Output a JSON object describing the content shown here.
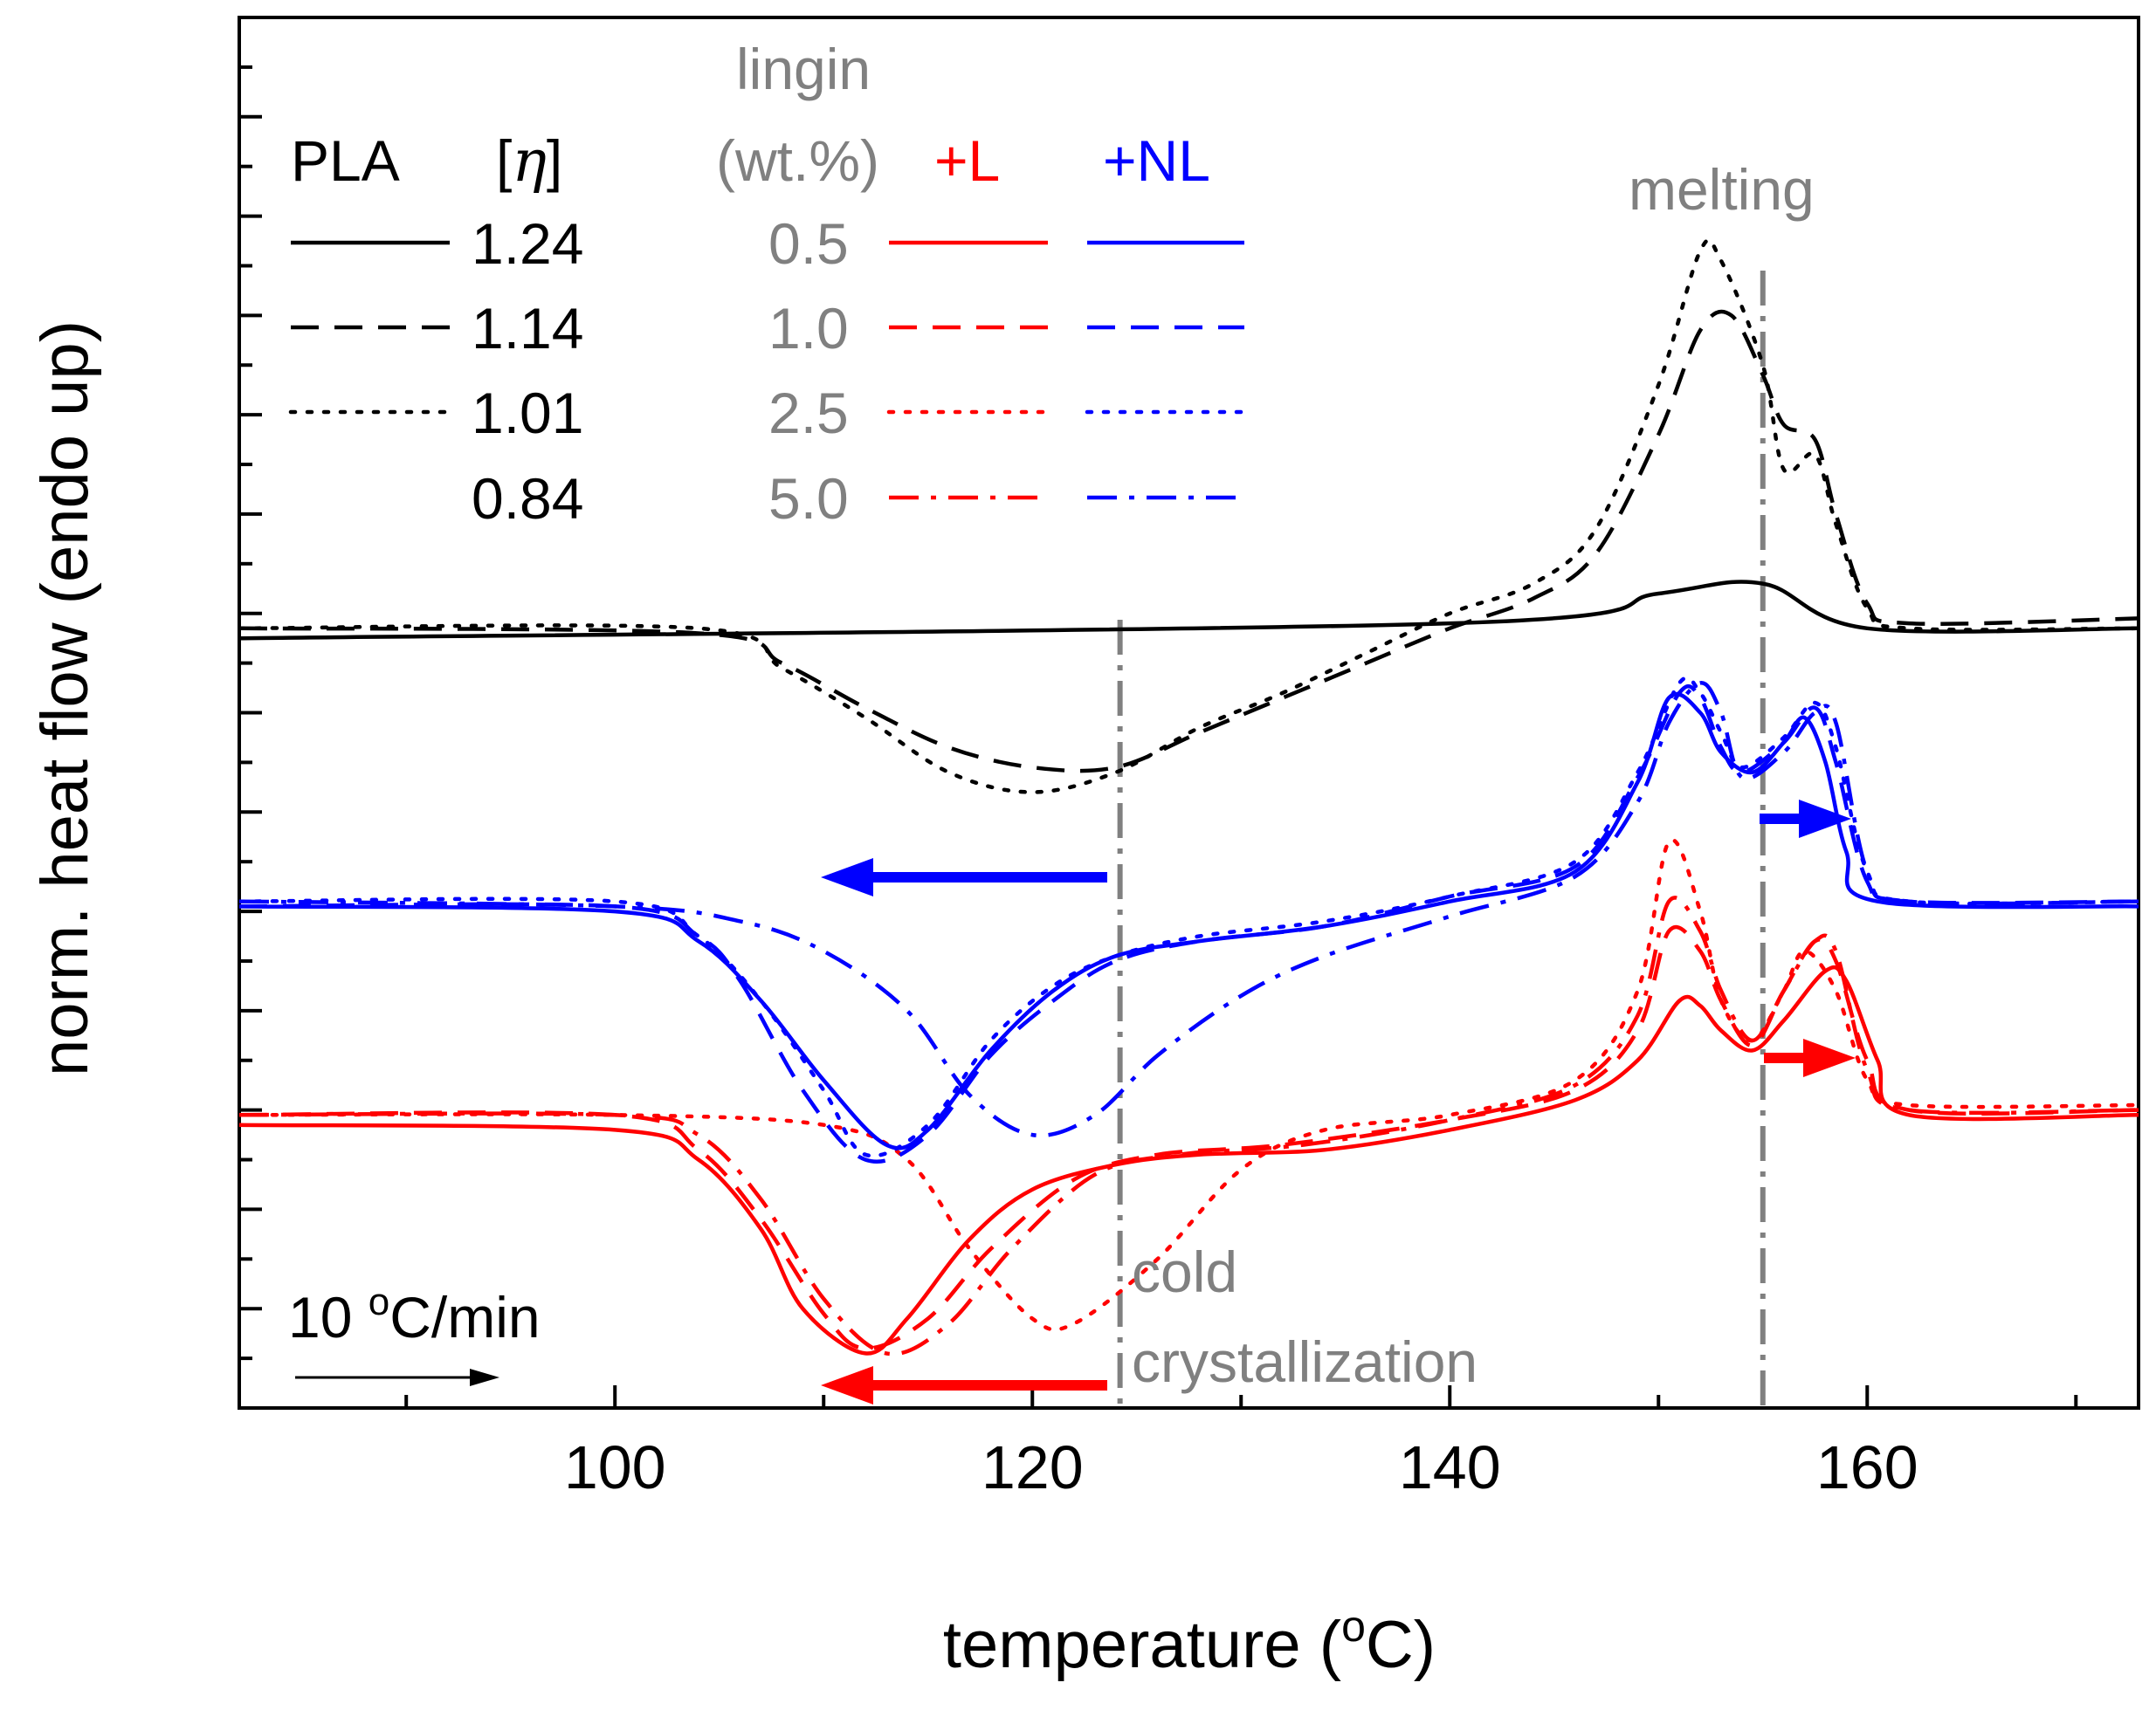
{
  "chart_data": {
    "type": "line",
    "title": "",
    "xlabel": "temperature (°C)",
    "xlabel_parts": [
      "temperature (",
      "o",
      "C)"
    ],
    "ylabel": "norm. heat flow (endo up)",
    "xlim": [
      82,
      173
    ],
    "ylim": [
      0,
      14
    ],
    "y_ticks_shown": false,
    "x_ticks": [
      100,
      120,
      140,
      160
    ],
    "x_tick_labels": [
      "100",
      "120",
      "140",
      "160"
    ],
    "x_minor_ticks": [
      90,
      110,
      130,
      150,
      170
    ],
    "colors": {
      "black": "#000000",
      "red": "#ff0000",
      "blue": "#0000ff",
      "gray": "#808080"
    },
    "legend": {
      "pla_header": "PLA",
      "eta_header": "[η]",
      "eta_bracket_open": "[",
      "eta_symbol": "η",
      "eta_bracket_close": "]",
      "lignin_header_1": "lingin",
      "lignin_header_2": "(wt.%)",
      "plus_l_header": "+L",
      "plus_nl_header": "+NL",
      "pla_rows": [
        {
          "style": "solid",
          "value": "1.24"
        },
        {
          "style": "dashed",
          "value": "1.14"
        },
        {
          "style": "dotted",
          "value": "1.01"
        },
        {
          "style": "none",
          "value": "0.84"
        }
      ],
      "lignin_rows": [
        {
          "style": "solid",
          "value": "0.5"
        },
        {
          "style": "dashed",
          "value": "1.0"
        },
        {
          "style": "dotted",
          "value": "2.5"
        },
        {
          "style": "dashdot",
          "value": "5.0"
        }
      ]
    },
    "annotations": {
      "melting_label": "melting",
      "melting_temperature": 155,
      "cold_label_1": "cold",
      "cold_label_2": "crystallization",
      "cold_crystallization_temperature": 124.2,
      "rate_label": "10 °C/min",
      "rate_label_parts": [
        "10 ",
        "o",
        "C/min"
      ]
    },
    "series": [
      {
        "name": "PLA [η]=1.24",
        "group": "PLA",
        "color": "#000000",
        "style": "solid",
        "points": [
          [
            82,
            7.75
          ],
          [
            140,
            7.9
          ],
          [
            150,
            8.2
          ],
          [
            155,
            8.3
          ],
          [
            160,
            7.85
          ],
          [
            173,
            7.85
          ]
        ]
      },
      {
        "name": "PLA [η]=1.14",
        "group": "PLA",
        "color": "#000000",
        "style": "dashed",
        "points": [
          [
            82,
            7.85
          ],
          [
            104,
            7.8
          ],
          [
            108,
            7.5
          ],
          [
            112,
            7.05
          ],
          [
            116,
            6.65
          ],
          [
            120,
            6.45
          ],
          [
            124,
            6.45
          ],
          [
            128,
            6.8
          ],
          [
            132,
            7.15
          ],
          [
            136,
            7.5
          ],
          [
            140,
            7.85
          ],
          [
            144,
            8.15
          ],
          [
            147,
            8.6
          ],
          [
            150,
            9.8
          ],
          [
            152,
            10.85
          ],
          [
            153.5,
            11.0
          ],
          [
            155,
            10.4
          ],
          [
            156,
            9.9
          ],
          [
            157.5,
            9.75
          ],
          [
            158.5,
            9.0
          ],
          [
            160,
            8.1
          ],
          [
            162,
            7.9
          ],
          [
            173,
            7.95
          ]
        ]
      },
      {
        "name": "PLA [η]=1.01",
        "group": "PLA",
        "color": "#000000",
        "style": "dotted",
        "points": [
          [
            82,
            7.85
          ],
          [
            104,
            7.85
          ],
          [
            108,
            7.45
          ],
          [
            112,
            6.95
          ],
          [
            116,
            6.4
          ],
          [
            120,
            6.2
          ],
          [
            124,
            6.4
          ],
          [
            128,
            6.85
          ],
          [
            132,
            7.2
          ],
          [
            136,
            7.6
          ],
          [
            140,
            8.0
          ],
          [
            144,
            8.3
          ],
          [
            147,
            8.85
          ],
          [
            150,
            10.3
          ],
          [
            152,
            11.65
          ],
          [
            153,
            11.55
          ],
          [
            155,
            10.5
          ],
          [
            156,
            9.45
          ],
          [
            157.5,
            9.6
          ],
          [
            158.5,
            8.9
          ],
          [
            160,
            8.05
          ],
          [
            162,
            7.85
          ],
          [
            173,
            7.85
          ]
        ]
      },
      {
        "name": "PLA/L 0.5 wt.%",
        "group": "+L",
        "color": "#ff0000",
        "style": "solid",
        "points": [
          [
            82,
            2.85
          ],
          [
            100,
            2.8
          ],
          [
            104,
            2.5
          ],
          [
            107,
            1.8
          ],
          [
            109,
            1.0
          ],
          [
            112,
            0.55
          ],
          [
            114,
            0.9
          ],
          [
            117,
            1.7
          ],
          [
            120,
            2.2
          ],
          [
            124,
            2.45
          ],
          [
            128,
            2.55
          ],
          [
            134,
            2.6
          ],
          [
            140,
            2.8
          ],
          [
            146,
            3.1
          ],
          [
            149,
            3.5
          ],
          [
            151,
            4.1
          ],
          [
            152,
            4.05
          ],
          [
            153,
            3.8
          ],
          [
            154.5,
            3.6
          ],
          [
            156,
            3.9
          ],
          [
            158,
            4.4
          ],
          [
            159,
            4.3
          ],
          [
            160.5,
            3.5
          ],
          [
            162,
            2.95
          ],
          [
            173,
            2.95
          ]
        ]
      },
      {
        "name": "PLA/L 1.0 wt.%",
        "group": "+L",
        "color": "#ff0000",
        "style": "dashed",
        "points": [
          [
            82,
            2.95
          ],
          [
            100,
            2.95
          ],
          [
            104,
            2.6
          ],
          [
            107,
            1.9
          ],
          [
            110,
            0.95
          ],
          [
            112,
            0.6
          ],
          [
            115,
            0.9
          ],
          [
            118,
            1.6
          ],
          [
            122,
            2.3
          ],
          [
            126,
            2.55
          ],
          [
            132,
            2.65
          ],
          [
            140,
            2.9
          ],
          [
            146,
            3.2
          ],
          [
            149,
            3.8
          ],
          [
            150.5,
            4.8
          ],
          [
            152,
            4.6
          ],
          [
            153,
            4.1
          ],
          [
            154.5,
            3.65
          ],
          [
            156,
            4.2
          ],
          [
            157.5,
            4.7
          ],
          [
            158.5,
            4.5
          ],
          [
            160,
            3.5
          ],
          [
            162,
            3.0
          ],
          [
            173,
            3.0
          ]
        ]
      },
      {
        "name": "PLA/L 2.5 wt.%",
        "group": "+L",
        "color": "#ff0000",
        "style": "dotted",
        "points": [
          [
            82,
            2.95
          ],
          [
            100,
            2.95
          ],
          [
            110,
            2.85
          ],
          [
            114,
            2.5
          ],
          [
            117,
            1.6
          ],
          [
            120,
            0.9
          ],
          [
            122,
            0.85
          ],
          [
            126,
            1.5
          ],
          [
            130,
            2.4
          ],
          [
            134,
            2.8
          ],
          [
            140,
            2.95
          ],
          [
            146,
            3.3
          ],
          [
            149,
            4.2
          ],
          [
            150.5,
            5.7
          ],
          [
            152,
            5.0
          ],
          [
            153,
            4.1
          ],
          [
            154.5,
            3.7
          ],
          [
            156,
            4.2
          ],
          [
            157,
            4.6
          ],
          [
            158.5,
            4.2
          ],
          [
            160,
            3.3
          ],
          [
            162,
            3.05
          ],
          [
            173,
            3.05
          ]
        ]
      },
      {
        "name": "PLA/L 5.0 wt.%",
        "group": "+L",
        "color": "#ff0000",
        "style": "dashdot",
        "points": [
          [
            82,
            2.95
          ],
          [
            100,
            2.95
          ],
          [
            104,
            2.75
          ],
          [
            107,
            2.1
          ],
          [
            110,
            1.1
          ],
          [
            113,
            0.55
          ],
          [
            116,
            0.85
          ],
          [
            119,
            1.6
          ],
          [
            123,
            2.35
          ],
          [
            127,
            2.55
          ],
          [
            133,
            2.65
          ],
          [
            140,
            2.9
          ],
          [
            146,
            3.25
          ],
          [
            149,
            3.95
          ],
          [
            150.5,
            5.1
          ],
          [
            152,
            4.8
          ],
          [
            153,
            4.2
          ],
          [
            154.5,
            3.7
          ],
          [
            156,
            4.2
          ],
          [
            157.5,
            4.7
          ],
          [
            158.5,
            4.6
          ],
          [
            160,
            3.4
          ],
          [
            162,
            3.0
          ],
          [
            173,
            3.0
          ]
        ]
      },
      {
        "name": "PLA/NL 0.5 wt.%",
        "group": "+NL",
        "color": "#0000ff",
        "style": "solid",
        "points": [
          [
            82,
            5.05
          ],
          [
            100,
            5.0
          ],
          [
            104,
            4.7
          ],
          [
            107,
            4.1
          ],
          [
            110,
            3.3
          ],
          [
            113,
            2.65
          ],
          [
            115,
            2.8
          ],
          [
            118,
            3.6
          ],
          [
            121,
            4.2
          ],
          [
            124,
            4.55
          ],
          [
            128,
            4.7
          ],
          [
            134,
            4.85
          ],
          [
            140,
            5.1
          ],
          [
            146,
            5.4
          ],
          [
            149,
            6.3
          ],
          [
            150.5,
            7.15
          ],
          [
            152,
            7.0
          ],
          [
            153,
            6.6
          ],
          [
            154.5,
            6.4
          ],
          [
            156,
            6.7
          ],
          [
            157,
            6.95
          ],
          [
            158,
            6.5
          ],
          [
            159,
            5.6
          ],
          [
            160.5,
            5.1
          ],
          [
            173,
            5.05
          ]
        ]
      },
      {
        "name": "PLA/NL 1.0 wt.%",
        "group": "+NL",
        "color": "#0000ff",
        "style": "dashed",
        "points": [
          [
            82,
            5.05
          ],
          [
            100,
            5.05
          ],
          [
            104,
            4.75
          ],
          [
            106,
            4.3
          ],
          [
            109,
            3.2
          ],
          [
            112,
            2.5
          ],
          [
            115,
            2.75
          ],
          [
            118,
            3.55
          ],
          [
            121,
            4.1
          ],
          [
            124,
            4.5
          ],
          [
            128,
            4.7
          ],
          [
            134,
            4.85
          ],
          [
            140,
            5.15
          ],
          [
            146,
            5.45
          ],
          [
            149,
            6.35
          ],
          [
            151,
            7.2
          ],
          [
            152,
            7.15
          ],
          [
            153,
            6.65
          ],
          [
            154,
            6.4
          ],
          [
            156,
            6.7
          ],
          [
            157.5,
            7.05
          ],
          [
            158.5,
            6.5
          ],
          [
            160,
            5.3
          ],
          [
            162,
            5.1
          ],
          [
            173,
            5.1
          ]
        ]
      },
      {
        "name": "PLA/NL 2.5 wt.%",
        "group": "+NL",
        "color": "#0000ff",
        "style": "dotted",
        "points": [
          [
            82,
            5.1
          ],
          [
            100,
            5.1
          ],
          [
            104,
            4.75
          ],
          [
            107,
            4.1
          ],
          [
            110,
            3.2
          ],
          [
            112,
            2.55
          ],
          [
            115,
            2.85
          ],
          [
            118,
            3.7
          ],
          [
            121,
            4.25
          ],
          [
            124,
            4.55
          ],
          [
            128,
            4.75
          ],
          [
            134,
            4.9
          ],
          [
            140,
            5.15
          ],
          [
            146,
            5.5
          ],
          [
            149,
            6.4
          ],
          [
            151,
            7.3
          ],
          [
            152,
            7.2
          ],
          [
            153,
            6.8
          ],
          [
            154,
            6.45
          ],
          [
            156,
            6.75
          ],
          [
            157.5,
            7.1
          ],
          [
            158.5,
            6.65
          ],
          [
            160,
            5.4
          ],
          [
            162,
            5.1
          ],
          [
            173,
            5.1
          ]
        ]
      },
      {
        "name": "PLA/NL 5.0 wt.%",
        "group": "+NL",
        "color": "#0000ff",
        "style": "dashdot",
        "points": [
          [
            82,
            5.1
          ],
          [
            100,
            5.05
          ],
          [
            106,
            4.9
          ],
          [
            110,
            4.6
          ],
          [
            114,
            4.0
          ],
          [
            117,
            3.15
          ],
          [
            120,
            2.75
          ],
          [
            123,
            2.95
          ],
          [
            126,
            3.55
          ],
          [
            130,
            4.15
          ],
          [
            134,
            4.55
          ],
          [
            140,
            4.95
          ],
          [
            146,
            5.35
          ],
          [
            149,
            6.1
          ],
          [
            150.5,
            6.9
          ],
          [
            152,
            7.3
          ],
          [
            153,
            7.0
          ],
          [
            154,
            6.35
          ],
          [
            156,
            6.6
          ],
          [
            157.5,
            7.0
          ],
          [
            158.5,
            6.9
          ],
          [
            160,
            5.4
          ],
          [
            162,
            5.1
          ],
          [
            173,
            5.1
          ]
        ]
      }
    ]
  }
}
